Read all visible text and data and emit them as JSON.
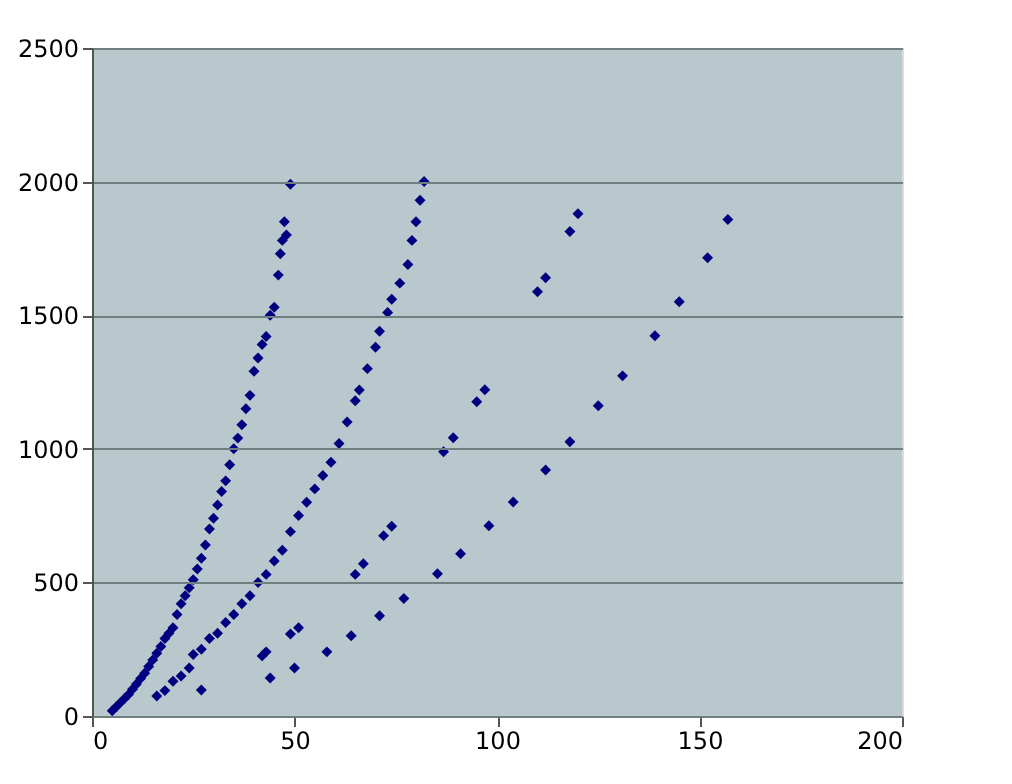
{
  "chart_data": {
    "type": "scatter",
    "marker": "diamond",
    "grid": "y",
    "xlim": [
      0,
      200
    ],
    "xticks": [
      0,
      50,
      100,
      150,
      200
    ],
    "ylim": [
      0,
      2500
    ],
    "yticks": [
      0,
      500,
      1000,
      1500,
      2000,
      2500
    ],
    "series": [
      {
        "color": "#000080",
        "x": [
          5,
          6,
          7,
          8,
          9,
          10,
          11,
          12,
          13,
          14,
          15,
          16,
          17,
          18,
          19,
          20,
          21,
          22,
          23,
          24,
          25,
          26,
          27,
          28,
          29,
          30,
          31,
          32,
          33,
          34,
          35,
          36,
          37,
          38,
          39,
          40,
          41,
          42,
          43,
          44,
          45,
          46,
          46.5,
          47,
          47.5,
          48,
          49,
          16,
          18,
          20,
          22,
          24,
          25,
          27,
          27,
          29,
          31,
          33,
          35,
          37,
          39,
          41,
          43,
          45,
          47,
          49,
          51,
          53,
          55,
          57,
          59,
          61,
          63,
          65,
          66,
          68,
          70,
          71,
          73,
          74,
          76,
          78,
          79,
          80,
          81,
          82,
          42,
          43,
          49,
          51,
          65,
          67,
          72,
          74,
          86.8,
          89.2,
          95,
          97,
          110,
          112,
          118,
          120,
          44,
          50,
          58,
          64,
          71,
          77,
          85.3,
          91,
          98,
          104,
          112,
          118,
          125,
          131,
          139,
          145,
          152,
          157
        ],
        "values": [
          20,
          35,
          50,
          65,
          80,
          100,
          120,
          140,
          160,
          185,
          210,
          235,
          260,
          290,
          310,
          330,
          380,
          420,
          450,
          480,
          510,
          550,
          590,
          640,
          700,
          740,
          790,
          840,
          880,
          940,
          1000,
          1040,
          1090,
          1150,
          1200,
          1290,
          1340,
          1390,
          1420,
          1500,
          1530,
          1650,
          1730,
          1780,
          1850,
          1800,
          1990,
          75,
          95,
          130,
          150,
          180,
          230,
          250,
          97,
          290,
          310,
          350,
          380,
          420,
          450,
          500,
          530,
          580,
          620,
          690,
          750,
          800,
          850,
          900,
          950,
          1020,
          1100,
          1180,
          1220,
          1300,
          1380,
          1440,
          1510,
          1560,
          1620,
          1690,
          1780,
          1850,
          1930,
          2000,
          225,
          240,
          307,
          330,
          530,
          570,
          675,
          710,
          989,
          1041,
          1176,
          1221,
          1588,
          1640,
          1813,
          1880,
          142,
          180,
          240,
          300,
          375,
          440,
          532,
          607,
          712,
          801,
          921,
          1026,
          1161,
          1273,
          1423,
          1550,
          1715,
          1858
        ]
      }
    ]
  }
}
